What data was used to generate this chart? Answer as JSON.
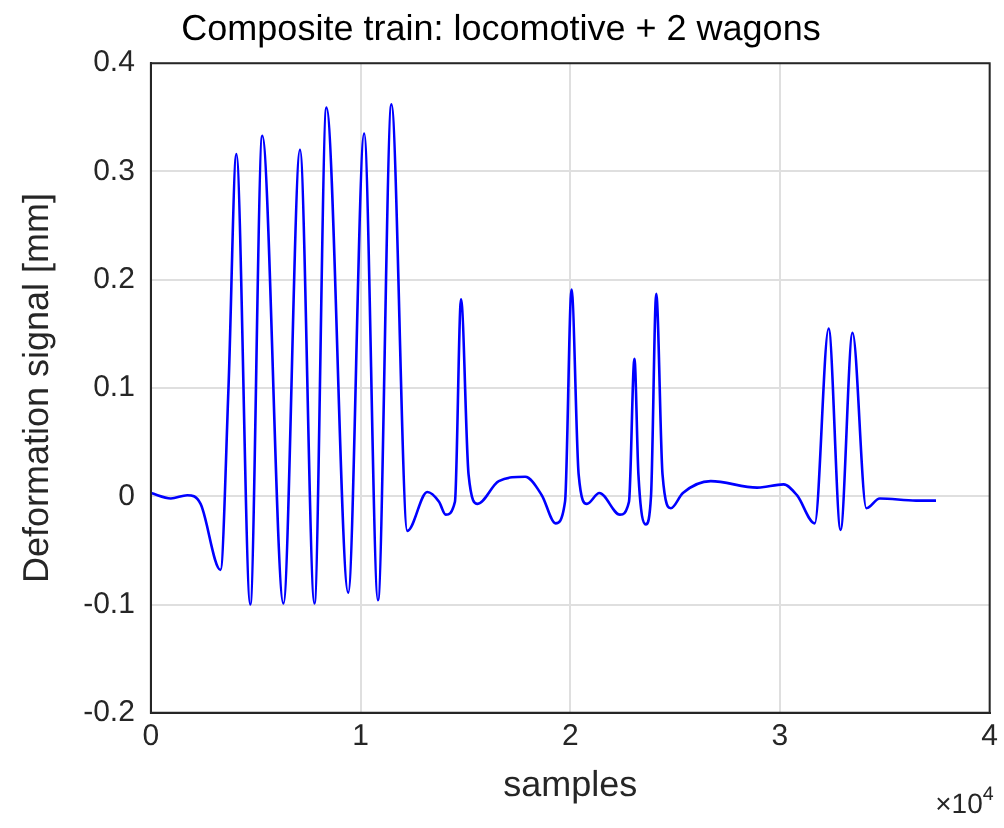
{
  "chart_data": {
    "type": "line",
    "title": "Composite train: locomotive + 2 wagons",
    "xlabel": "samples",
    "ylabel": "Deformation signal [mm]",
    "annotations": [
      "×10$^{4}$"
    ],
    "xlim": [
      0,
      4
    ],
    "xticks": [
      0,
      1,
      2,
      3,
      4
    ],
    "ylim": [
      -0.2,
      0.4
    ],
    "yticks": [
      -0.2,
      -0.1,
      0,
      0.1,
      0.2,
      0.3,
      0.4
    ],
    "grid": true,
    "legend": false,
    "marker": "none",
    "line_style": "solid",
    "series": [
      {
        "color": "#0000ff",
        "x": [
          0,
          0.095,
          0.1735,
          0.237,
          0.332,
          0.37,
          0.4075,
          0.474,
          0.531,
          0.632,
          0.711,
          0.78,
          0.837,
          0.941,
          1.017,
          1.083,
          1.147,
          1.223,
          1.318,
          1.374,
          1.406,
          1.45,
          1.479,
          1.515,
          1.558,
          1.659,
          1.785,
          1.864,
          1.93,
          1.975,
          2.006,
          2.04,
          2.079,
          2.139,
          2.237,
          2.28,
          2.306,
          2.325,
          2.36,
          2.385,
          2.41,
          2.44,
          2.48,
          2.537,
          2.67,
          2.891,
          3.017,
          3.081,
          3.166,
          3.232,
          3.289,
          3.346,
          3.412,
          3.476,
          3.649,
          3.744
        ],
        "values": [
          0.003,
          -0.002,
          0.001,
          -0.007,
          -0.068,
          0.1,
          0.316,
          -0.1,
          0.333,
          -0.099,
          0.32,
          -0.099,
          0.359,
          -0.089,
          0.335,
          -0.096,
          0.362,
          -0.032,
          0.004,
          -0.005,
          -0.017,
          -0.005,
          0.182,
          0.02,
          -0.007,
          0.014,
          0.018,
          0.001,
          -0.025,
          -0.005,
          0.191,
          0.02,
          -0.007,
          0.003,
          -0.017,
          -0.005,
          0.127,
          0.02,
          -0.026,
          0.0,
          0.187,
          0.02,
          -0.011,
          0.003,
          0.014,
          0.008,
          0.011,
          0.001,
          -0.025,
          0.155,
          -0.031,
          0.151,
          -0.011,
          -0.002,
          -0.004,
          -0.004
        ]
      }
    ]
  }
}
